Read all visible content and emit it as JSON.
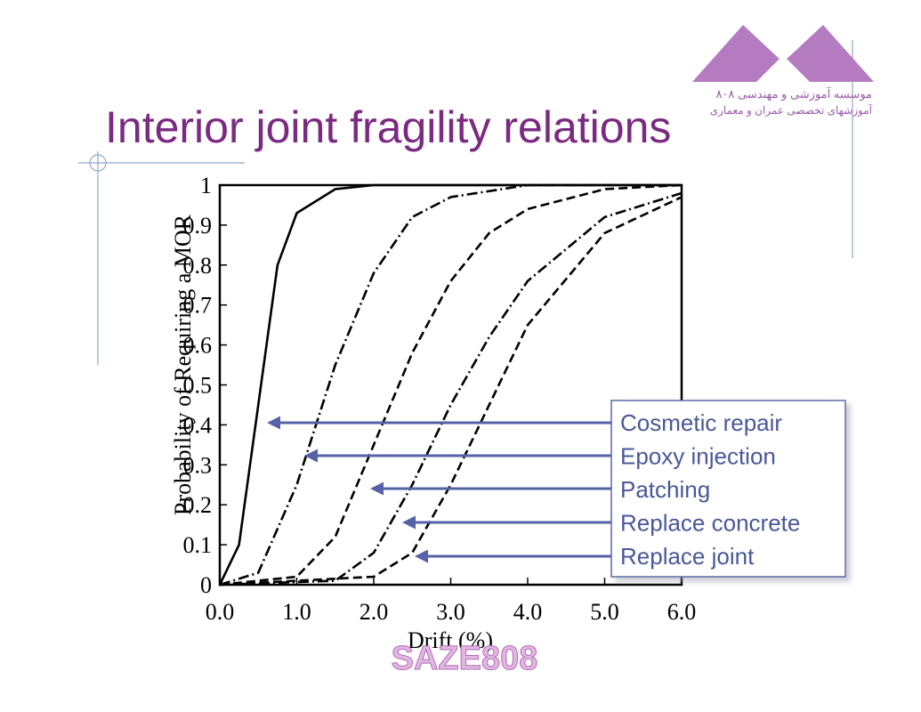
{
  "slide": {
    "title": "Interior joint fragility relations",
    "logo": {
      "line1": "موسسه آموزشی و مهندسی ۸۰۸",
      "line2": "آموزشهای تخصصی عمران و معماری"
    },
    "watermark": "SAZE808"
  },
  "chart_data": {
    "type": "line",
    "x_label": "Drift (%)",
    "y_label": "Probability of Requiring a MOR",
    "xlim": [
      0,
      6
    ],
    "ylim": [
      0,
      1
    ],
    "xticks": [
      {
        "value": 0,
        "label": "0.0"
      },
      {
        "value": 1,
        "label": "1.0"
      },
      {
        "value": 2,
        "label": "2.0"
      },
      {
        "value": 3,
        "label": "3.0"
      },
      {
        "value": 4,
        "label": "4.0"
      },
      {
        "value": 5,
        "label": "5.0"
      },
      {
        "value": 6,
        "label": "6.0"
      }
    ],
    "yticks": [
      0,
      0.1,
      0.2,
      0.3,
      0.4,
      0.5,
      0.6,
      0.7,
      0.8,
      0.9,
      1
    ],
    "grid": false,
    "series": [
      {
        "name": "Cosmetic repair",
        "color": "#000000",
        "style": "solid",
        "x": [
          0,
          0.25,
          0.5,
          0.75,
          1.0,
          1.5,
          2.0,
          3,
          6
        ],
        "values": [
          0,
          0.1,
          0.45,
          0.8,
          0.93,
          0.99,
          1,
          1,
          1
        ]
      },
      {
        "name": "Epoxy injection",
        "color": "#000000",
        "style": "dash-dot",
        "x": [
          0,
          0.5,
          1.0,
          1.5,
          2.0,
          2.5,
          3.0,
          4,
          6
        ],
        "values": [
          0,
          0.03,
          0.25,
          0.55,
          0.78,
          0.92,
          0.97,
          1,
          1
        ]
      },
      {
        "name": "Patching",
        "color": "#000000",
        "style": "dashed",
        "x": [
          0,
          1,
          1.5,
          2,
          2.5,
          3,
          3.5,
          4,
          5,
          6
        ],
        "values": [
          0,
          0.02,
          0.12,
          0.35,
          0.58,
          0.76,
          0.88,
          0.94,
          0.99,
          1
        ]
      },
      {
        "name": "Replace concrete",
        "color": "#000000",
        "style": "dash-dot",
        "x": [
          0,
          1.5,
          2,
          2.5,
          3,
          3.5,
          4,
          5,
          6
        ],
        "values": [
          0,
          0.01,
          0.08,
          0.25,
          0.45,
          0.62,
          0.76,
          0.92,
          0.98
        ]
      },
      {
        "name": "Replace joint",
        "color": "#000000",
        "style": "dashed",
        "x": [
          0,
          2,
          2.5,
          3,
          3.5,
          4,
          5,
          6
        ],
        "values": [
          0,
          0.02,
          0.08,
          0.25,
          0.45,
          0.65,
          0.88,
          0.97
        ]
      }
    ]
  }
}
